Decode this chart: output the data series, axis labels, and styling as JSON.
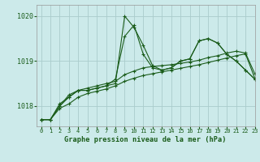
{
  "title": "Graphe pression niveau de la mer (hPa)",
  "bg_color": "#cceaea",
  "grid_color": "#aacccc",
  "line_color": "#1a5c1a",
  "xlim": [
    -0.5,
    23
  ],
  "ylim": [
    1017.55,
    1020.25
  ],
  "yticks": [
    1018,
    1019,
    1020
  ],
  "xticks": [
    0,
    1,
    2,
    3,
    4,
    5,
    6,
    7,
    8,
    9,
    10,
    11,
    12,
    13,
    14,
    15,
    16,
    17,
    18,
    19,
    20,
    21,
    22,
    23
  ],
  "series": [
    [
      1017.7,
      1017.7,
      1018.0,
      1018.25,
      1018.35,
      1018.35,
      1018.4,
      1018.45,
      1018.5,
      1020.0,
      1019.75,
      1019.35,
      1018.9,
      1018.8,
      1018.85,
      1019.0,
      1019.05,
      1019.45,
      1019.5,
      1019.4,
      1019.15,
      1019.0,
      1018.8,
      1018.6
    ],
    [
      1017.7,
      1017.7,
      1018.0,
      1018.2,
      1018.35,
      1018.35,
      1018.4,
      1018.45,
      1018.6,
      1019.55,
      1019.8,
      1019.15,
      1018.85,
      1018.8,
      1018.85,
      1019.0,
      1019.05,
      1019.45,
      1019.5,
      1019.4,
      1019.15,
      1019.0,
      1018.8,
      1018.6
    ],
    [
      1017.7,
      1017.7,
      1018.05,
      1018.2,
      1018.35,
      1018.4,
      1018.45,
      1018.5,
      1018.55,
      1018.7,
      1018.78,
      1018.85,
      1018.88,
      1018.9,
      1018.92,
      1018.95,
      1018.98,
      1019.02,
      1019.08,
      1019.12,
      1019.18,
      1019.22,
      1019.18,
      1018.72
    ],
    [
      1017.7,
      1017.7,
      1017.95,
      1018.05,
      1018.2,
      1018.28,
      1018.33,
      1018.38,
      1018.45,
      1018.55,
      1018.62,
      1018.68,
      1018.72,
      1018.76,
      1018.8,
      1018.84,
      1018.88,
      1018.92,
      1018.97,
      1019.02,
      1019.07,
      1019.12,
      1019.16,
      1018.62
    ]
  ]
}
